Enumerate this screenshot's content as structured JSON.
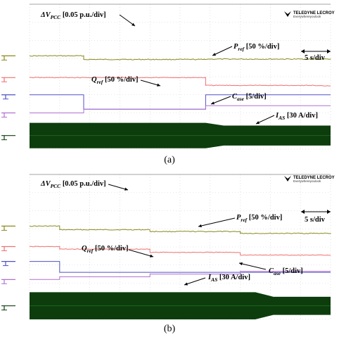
{
  "chart_data": [
    {
      "type": "line",
      "panel": "a",
      "caption": "(a)",
      "brand": {
        "name": "TELEDYNE LECROY",
        "tagline": "Everywhereyoulook"
      },
      "time_scale": "5 s/div",
      "background": "#ffffff",
      "colors": {
        "dvpcc": "#8a8a1e",
        "pref": "#f07070",
        "qref": "#5050c8",
        "case": "#b070d0",
        "ias": "#0d3d0d",
        "grid": "#cfcfcf"
      },
      "divisions": {
        "x": 10,
        "y": 8
      },
      "series": [
        {
          "key": "dvpcc",
          "label": "ΔVPCC [0.05 p.u./div]",
          "steps": [
            [
              0,
              5.15
            ],
            [
              1.8,
              4.95
            ],
            [
              5.8,
              4.97
            ],
            [
              10,
              4.95
            ]
          ]
        },
        {
          "key": "pref",
          "label": "Pref [50 %/div]",
          "steps": [
            [
              0,
              3.95
            ],
            [
              5.85,
              3.52
            ],
            [
              9.5,
              3.5
            ]
          ]
        },
        {
          "key": "qref",
          "label": "Qref [50 %/div]",
          "steps": [
            [
              0,
              3.0
            ],
            [
              1.8,
              2.2
            ],
            [
              5.85,
              3.0
            ]
          ]
        },
        {
          "key": "case",
          "label": "Case [5/div]",
          "steps": [
            [
              0,
              2.0
            ],
            [
              1.8,
              2.2
            ],
            [
              5.85,
              2.4
            ]
          ]
        },
        {
          "key": "ias",
          "label": "IAS [30 A/div]",
          "band": [
            [
              0,
              0.7
            ],
            [
              5.85,
              0.55
            ]
          ]
        }
      ]
    },
    {
      "type": "line",
      "panel": "b",
      "caption": "(b)",
      "brand": {
        "name": "TELEDYNE LECROY",
        "tagline": "Everywhereyoulook"
      },
      "time_scale": "5 s/div",
      "background": "#ffffff",
      "colors": {
        "dvpcc": "#8a8a1e",
        "pref": "#f07070",
        "qref": "#5050c8",
        "case": "#b070d0",
        "ias": "#0d3d0d",
        "grid": "#cfcfcf"
      },
      "divisions": {
        "x": 10,
        "y": 8
      },
      "series": [
        {
          "key": "dvpcc",
          "label": "ΔVPCC [0.05 p.u./div]",
          "steps": [
            [
              0,
              5.15
            ],
            [
              1.0,
              4.95
            ],
            [
              4.0,
              4.85
            ],
            [
              7.0,
              4.75
            ],
            [
              10,
              4.72
            ]
          ]
        },
        {
          "key": "pref",
          "label": "Pref [50 %/div]",
          "steps": [
            [
              0,
              4.02
            ],
            [
              1.0,
              3.88
            ],
            [
              4.0,
              3.7
            ],
            [
              7.0,
              3.55
            ],
            [
              10,
              3.55
            ]
          ]
        },
        {
          "key": "qref",
          "label": "Qref [50 %/div]",
          "steps": [
            [
              0,
              3.2
            ],
            [
              1.0,
              2.6
            ],
            [
              10,
              2.6
            ]
          ]
        },
        {
          "key": "case",
          "label": "Case [5/div]",
          "steps": [
            [
              0,
              2.2
            ],
            [
              1.0,
              2.35
            ],
            [
              4.0,
              2.5
            ],
            [
              7.0,
              2.65
            ],
            [
              10,
              2.65
            ]
          ]
        },
        {
          "key": "ias",
          "label": "IAS [30 A/div]",
          "band": [
            [
              0,
              0.75
            ],
            [
              7.5,
              0.5
            ]
          ]
        }
      ]
    }
  ]
}
